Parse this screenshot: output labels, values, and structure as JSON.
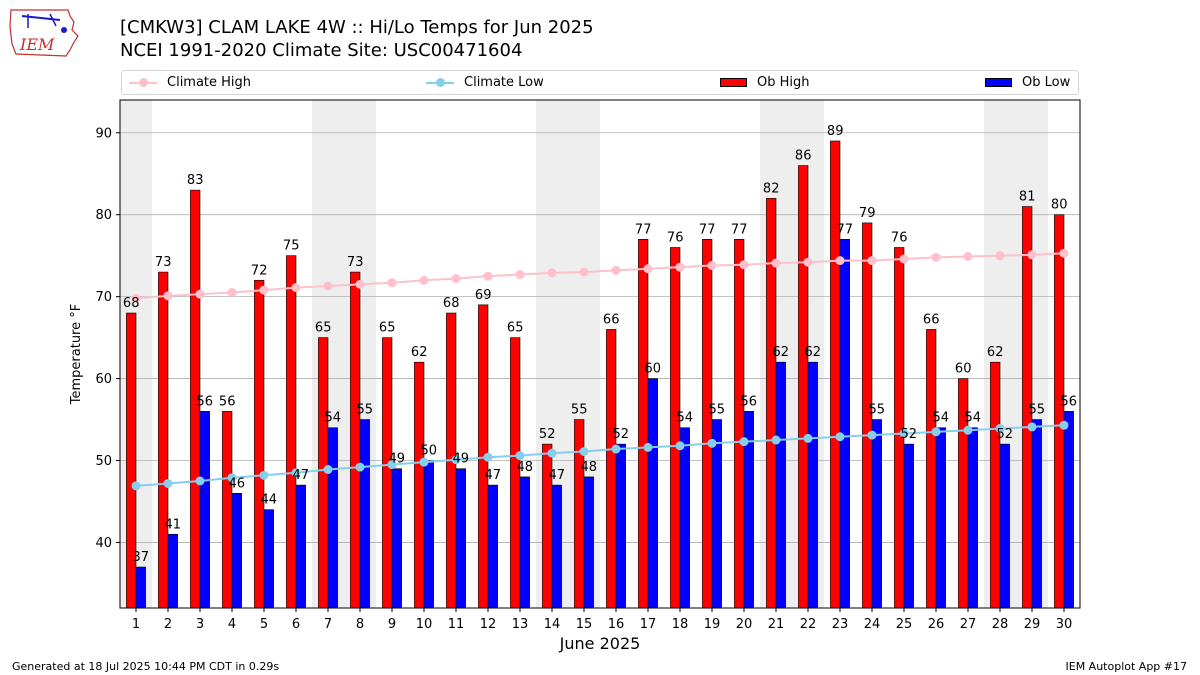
{
  "header": {
    "logo_text": "IEM",
    "title_line1": "[CMKW3] CLAM LAKE 4W :: Hi/Lo Temps for Jun 2025",
    "title_line2": "NCEI 1991-2020 Climate Site: USC00471604"
  },
  "legend": {
    "climate_high": "Climate High",
    "climate_low": "Climate Low",
    "ob_high": "Ob High",
    "ob_low": "Ob Low"
  },
  "colors": {
    "ob_high": "#ff0000",
    "ob_low": "#0000ff",
    "climate_high": "#ffc0cb",
    "climate_low": "#87ceeb",
    "weekend_band": "#eeeeee",
    "grid": "#b0b0b0"
  },
  "footer": {
    "generated": "Generated at 18 Jul 2025 10:44 PM CDT in 0.29s",
    "app": "IEM Autoplot App #17"
  },
  "chart_data": {
    "type": "bar",
    "xlabel": "June 2025",
    "ylabel": "Temperature °F",
    "ylim": [
      32,
      94
    ],
    "yticks": [
      40,
      50,
      60,
      70,
      80,
      90
    ],
    "grid": "horizontal",
    "legend_position": "top",
    "categories": [
      "1",
      "2",
      "3",
      "4",
      "5",
      "6",
      "7",
      "8",
      "9",
      "10",
      "11",
      "12",
      "13",
      "14",
      "15",
      "16",
      "17",
      "18",
      "19",
      "20",
      "21",
      "22",
      "23",
      "24",
      "25",
      "26",
      "27",
      "28",
      "29",
      "30"
    ],
    "series": [
      {
        "name": "Ob High",
        "type": "bar",
        "values": [
          68,
          73,
          83,
          56,
          72,
          75,
          65,
          73,
          65,
          62,
          68,
          69,
          65,
          52,
          55,
          66,
          77,
          76,
          77,
          77,
          82,
          86,
          89,
          79,
          76,
          66,
          60,
          62,
          81,
          80
        ]
      },
      {
        "name": "Ob Low",
        "type": "bar",
        "values": [
          37,
          41,
          56,
          46,
          44,
          47,
          54,
          55,
          49,
          50,
          49,
          47,
          48,
          47,
          48,
          52,
          60,
          54,
          55,
          56,
          62,
          62,
          77,
          55,
          52,
          54,
          54,
          52,
          55,
          56
        ]
      },
      {
        "name": "Climate High",
        "type": "line",
        "values": [
          69.8,
          70.1,
          70.3,
          70.5,
          70.8,
          71.1,
          71.3,
          71.5,
          71.7,
          72.0,
          72.2,
          72.5,
          72.7,
          72.9,
          73.0,
          73.2,
          73.4,
          73.6,
          73.8,
          73.9,
          74.1,
          74.2,
          74.4,
          74.4,
          74.6,
          74.8,
          74.9,
          75.0,
          75.1,
          75.3
        ]
      },
      {
        "name": "Climate Low",
        "type": "line",
        "values": [
          46.9,
          47.2,
          47.5,
          47.9,
          48.2,
          48.5,
          48.9,
          49.2,
          49.5,
          49.8,
          50.1,
          50.4,
          50.6,
          50.9,
          51.1,
          51.4,
          51.6,
          51.8,
          52.1,
          52.3,
          52.5,
          52.7,
          52.9,
          53.1,
          53.3,
          53.5,
          53.7,
          53.9,
          54.1,
          54.3
        ]
      }
    ],
    "shaded_days": [
      1,
      7,
      8,
      14,
      15,
      21,
      22,
      28,
      29
    ]
  }
}
